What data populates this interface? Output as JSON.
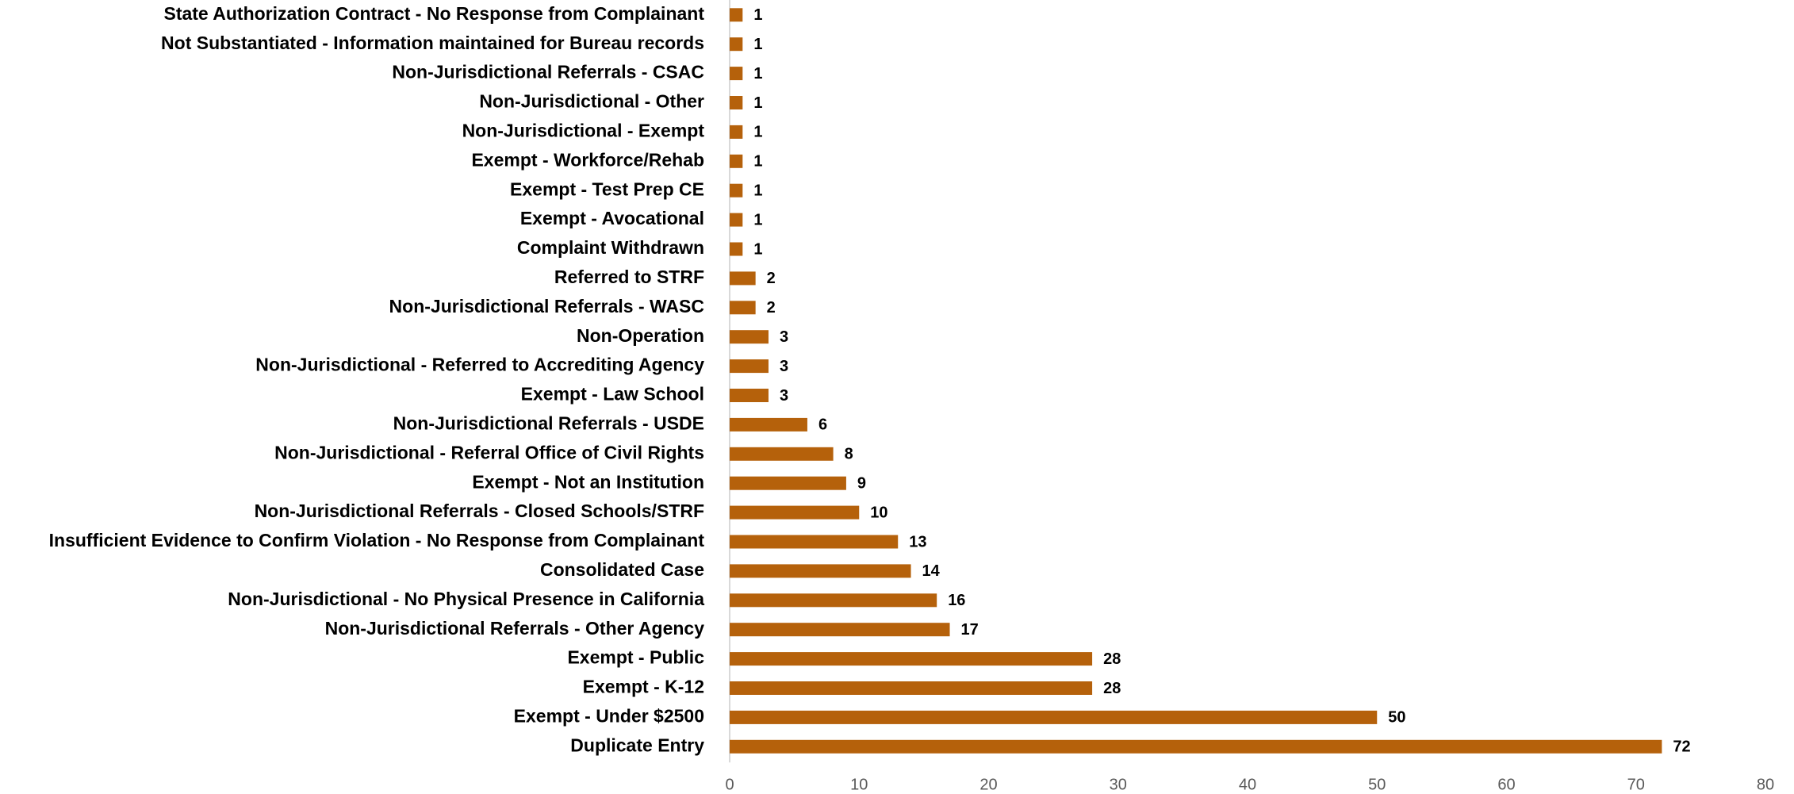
{
  "chart_data": {
    "type": "bar",
    "orientation": "horizontal",
    "color": "#b5610b",
    "categories": [
      "State Authorization Contract - No Response from Complainant",
      "Not Substantiated - Information maintained for Bureau records",
      "Non-Jurisdictional Referrals - CSAC",
      "Non-Jurisdictional - Other",
      "Non-Jurisdictional - Exempt",
      "Exempt - Workforce/Rehab",
      "Exempt - Test Prep CE",
      "Exempt - Avocational",
      "Complaint Withdrawn",
      "Referred to STRF",
      "Non-Jurisdictional Referrals - WASC",
      "Non-Operation",
      "Non-Jurisdictional - Referred to Accrediting Agency",
      "Exempt - Law School",
      "Non-Jurisdictional Referrals - USDE",
      "Non-Jurisdictional - Referral Office of Civil Rights",
      "Exempt - Not an Institution",
      "Non-Jurisdictional Referrals - Closed Schools/STRF",
      "Insufficient Evidence to Confirm Violation - No Response from Complainant",
      "Consolidated Case",
      "Non-Jurisdictional - No Physical Presence in California",
      "Non-Jurisdictional Referrals - Other Agency",
      "Exempt - Public",
      "Exempt - K-12",
      "Exempt - Under $2500",
      "Duplicate Entry"
    ],
    "values": [
      1,
      1,
      1,
      1,
      1,
      1,
      1,
      1,
      1,
      2,
      2,
      3,
      3,
      3,
      6,
      8,
      9,
      10,
      13,
      14,
      16,
      17,
      28,
      28,
      50,
      72
    ],
    "xlim": [
      0,
      80
    ],
    "xticks": [
      0,
      10,
      20,
      30,
      40,
      50,
      60,
      70,
      80
    ]
  }
}
